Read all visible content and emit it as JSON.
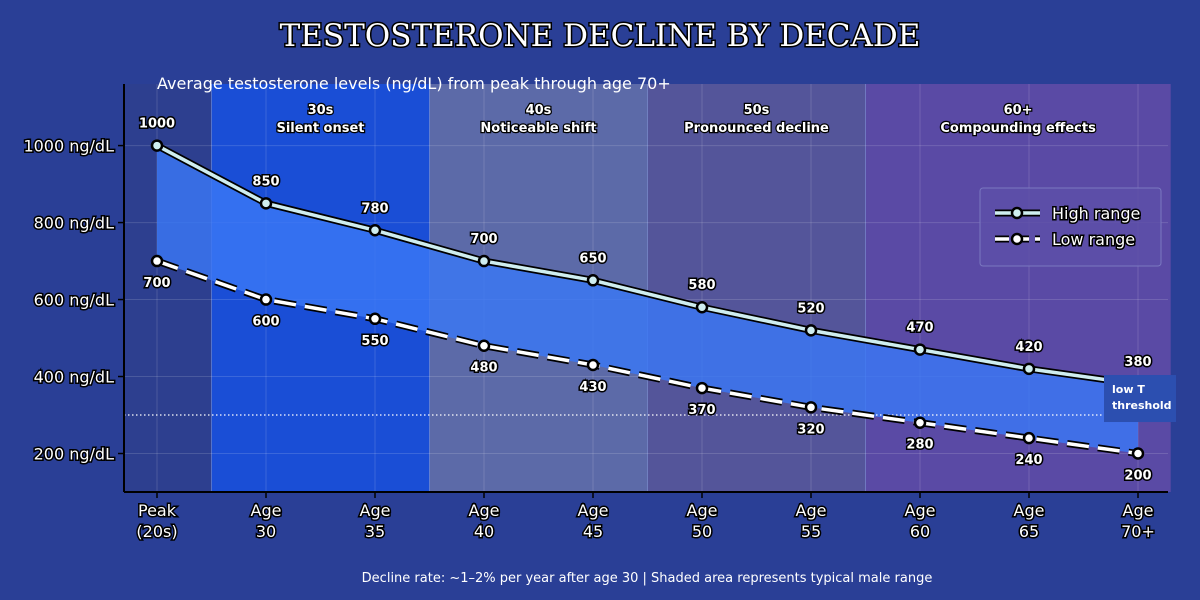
{
  "chart_data": {
    "type": "line",
    "title": "TESTOSTERONE DECLINE BY DECADE",
    "subtitle": "Average testosterone levels (ng/dL) from peak through age 70+",
    "footer": "Decline rate: ~1–2% per year after age 30  |  Shaded area represents typical male range",
    "categories": [
      [
        "Peak",
        "(20s)"
      ],
      [
        "Age",
        "30"
      ],
      [
        "Age",
        "35"
      ],
      [
        "Age",
        "40"
      ],
      [
        "Age",
        "45"
      ],
      [
        "Age",
        "50"
      ],
      [
        "Age",
        "55"
      ],
      [
        "Age",
        "60"
      ],
      [
        "Age",
        "65"
      ],
      [
        "Age",
        "70+"
      ]
    ],
    "series": [
      {
        "name": "High range",
        "values": [
          1000,
          850,
          780,
          700,
          650,
          580,
          520,
          470,
          420,
          380
        ]
      },
      {
        "name": "Low range",
        "values": [
          700,
          600,
          550,
          480,
          430,
          370,
          320,
          280,
          240,
          200
        ]
      }
    ],
    "yticks": [
      200,
      400,
      600,
      800,
      1000
    ],
    "ytick_suffix": " ng/dL",
    "ylim": [
      100,
      1160
    ],
    "threshold": {
      "value": 300,
      "label_line1": "low T",
      "label_line2": "threshold"
    },
    "bands": [
      {
        "from": 0.5,
        "to": 2.5,
        "label1": "30s",
        "label2": "Silent onset",
        "color": "#1a4ed6"
      },
      {
        "from": 2.5,
        "to": 4.5,
        "label1": "40s",
        "label2": "Noticeable shift",
        "color": "#5c6aa8"
      },
      {
        "from": 4.5,
        "to": 6.5,
        "label1": "50s",
        "label2": "Pronounced decline",
        "color": "#54559a"
      },
      {
        "from": 6.5,
        "to": 9.3,
        "label1": "60+",
        "label2": "Compounding effects",
        "color": "#5a4aa5"
      }
    ],
    "legend_position": "right",
    "colors": {
      "background": "#2a3f96",
      "plot_background": "#2d3f8f",
      "fill": "#3a78f5",
      "high_line": "#cfeef0",
      "low_line": "#ffffff",
      "threshold_line": "#ffffff",
      "threshold_box": "#2c4fb0"
    }
  }
}
